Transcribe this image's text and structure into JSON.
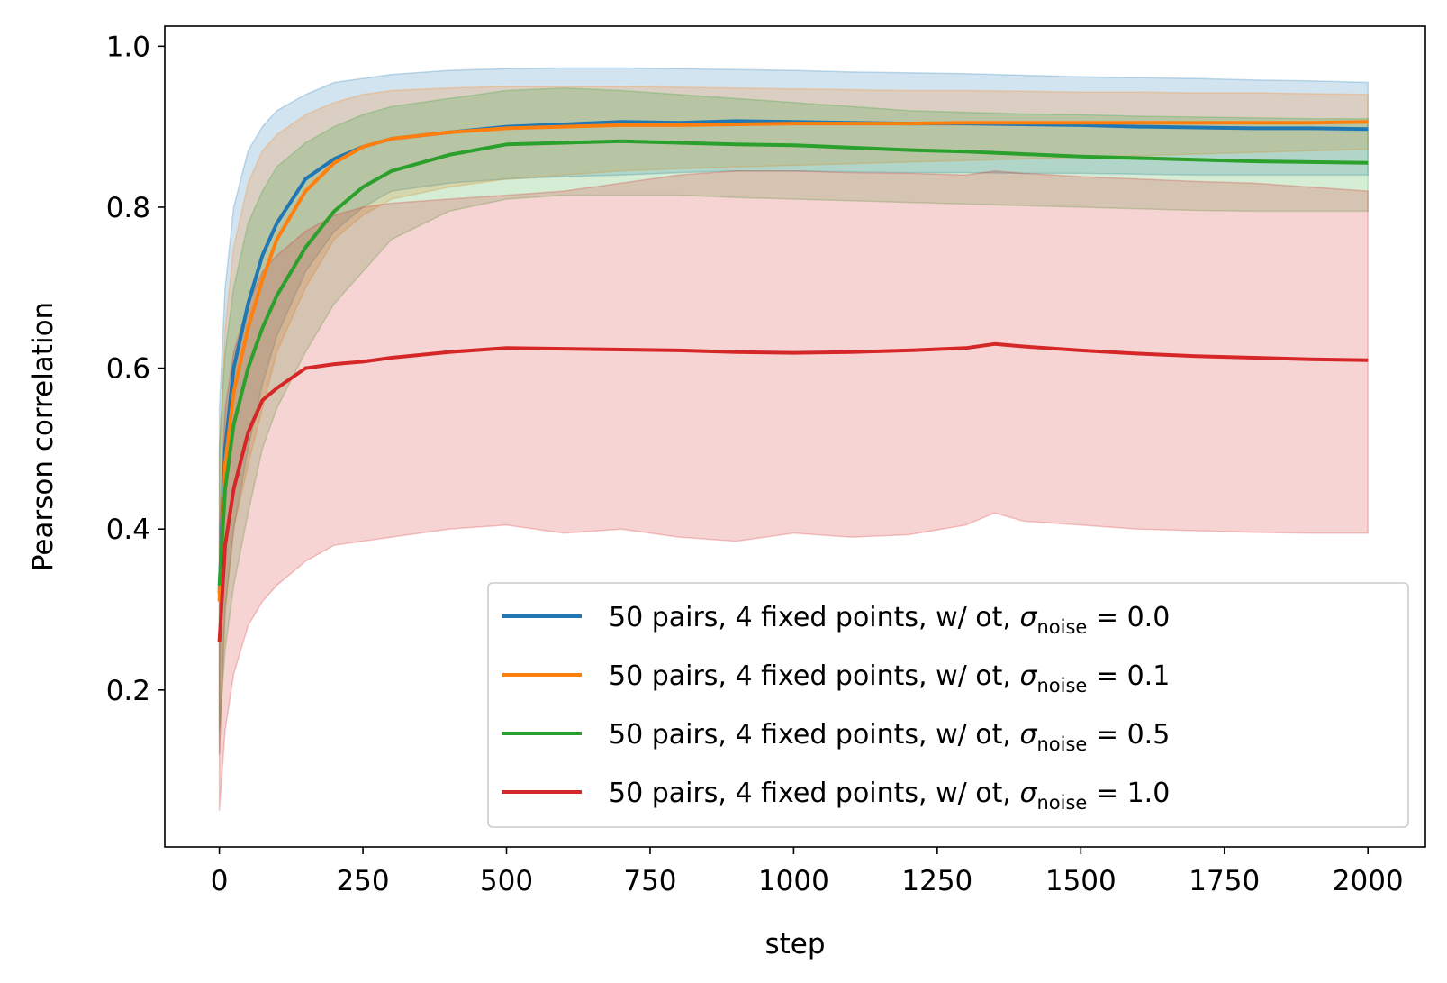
{
  "chart_data": {
    "type": "line",
    "title": "",
    "xlabel": "step",
    "ylabel": "Pearson correlation",
    "xlim": [
      -95,
      2100
    ],
    "ylim": [
      0.005,
      1.025
    ],
    "xticks": [
      0,
      250,
      500,
      750,
      1000,
      1250,
      1500,
      1750,
      2000
    ],
    "xtick_labels": [
      "0",
      "250",
      "500",
      "750",
      "1000",
      "1250",
      "1500",
      "1750",
      "2000"
    ],
    "yticks": [
      0.2,
      0.4,
      0.6,
      0.8,
      1.0
    ],
    "ytick_labels": [
      "0.2",
      "0.4",
      "0.6",
      "0.8",
      "1.0"
    ],
    "grid": false,
    "legend_position": "lower-right",
    "legend_prefix": "50 pairs, 4 fixed points, w/ ot, ",
    "legend_symbol": "σ",
    "legend_subscript": "noise",
    "series": [
      {
        "name": "50 pairs, 4 fixed points, w/ ot, σnoise = 0.0",
        "sigma_label": "= 0.0",
        "color": "#1f77b4",
        "x": [
          0,
          10,
          25,
          50,
          75,
          100,
          150,
          200,
          250,
          300,
          400,
          500,
          600,
          700,
          800,
          900,
          1000,
          1100,
          1200,
          1300,
          1400,
          1500,
          1600,
          1700,
          1800,
          1900,
          2000
        ],
        "mean": [
          0.32,
          0.5,
          0.6,
          0.68,
          0.74,
          0.78,
          0.835,
          0.86,
          0.875,
          0.885,
          0.893,
          0.9,
          0.903,
          0.906,
          0.905,
          0.907,
          0.906,
          0.905,
          0.904,
          0.904,
          0.903,
          0.902,
          0.9,
          0.899,
          0.898,
          0.898,
          0.897
        ],
        "upper": [
          0.55,
          0.7,
          0.8,
          0.87,
          0.9,
          0.92,
          0.94,
          0.955,
          0.96,
          0.965,
          0.97,
          0.972,
          0.973,
          0.973,
          0.972,
          0.971,
          0.97,
          0.968,
          0.967,
          0.966,
          0.964,
          0.962,
          0.961,
          0.96,
          0.958,
          0.957,
          0.955
        ],
        "lower": [
          0.12,
          0.3,
          0.4,
          0.5,
          0.58,
          0.64,
          0.72,
          0.77,
          0.8,
          0.82,
          0.83,
          0.835,
          0.838,
          0.84,
          0.843,
          0.845,
          0.845,
          0.844,
          0.843,
          0.843,
          0.842,
          0.842,
          0.841,
          0.84,
          0.84,
          0.84,
          0.84
        ]
      },
      {
        "name": "50 pairs, 4 fixed points, w/ ot, σnoise = 0.1",
        "sigma_label": "= 0.1",
        "color": "#ff7f0e",
        "x": [
          0,
          10,
          25,
          50,
          75,
          100,
          150,
          200,
          250,
          300,
          400,
          500,
          600,
          700,
          800,
          900,
          1000,
          1100,
          1200,
          1300,
          1400,
          1500,
          1600,
          1700,
          1800,
          1900,
          2000
        ],
        "mean": [
          0.31,
          0.48,
          0.57,
          0.65,
          0.71,
          0.76,
          0.82,
          0.855,
          0.875,
          0.885,
          0.893,
          0.898,
          0.9,
          0.902,
          0.902,
          0.903,
          0.904,
          0.904,
          0.904,
          0.905,
          0.905,
          0.905,
          0.905,
          0.905,
          0.905,
          0.905,
          0.906
        ],
        "upper": [
          0.5,
          0.65,
          0.75,
          0.83,
          0.87,
          0.89,
          0.915,
          0.93,
          0.94,
          0.945,
          0.948,
          0.95,
          0.95,
          0.95,
          0.949,
          0.948,
          0.947,
          0.946,
          0.945,
          0.945,
          0.944,
          0.943,
          0.943,
          0.942,
          0.942,
          0.941,
          0.94
        ],
        "lower": [
          0.12,
          0.3,
          0.4,
          0.48,
          0.55,
          0.62,
          0.7,
          0.76,
          0.79,
          0.81,
          0.825,
          0.835,
          0.84,
          0.845,
          0.848,
          0.85,
          0.852,
          0.854,
          0.856,
          0.858,
          0.86,
          0.862,
          0.864,
          0.866,
          0.868,
          0.87,
          0.872
        ]
      },
      {
        "name": "50 pairs, 4 fixed points, w/ ot, σnoise = 0.5",
        "sigma_label": "= 0.5",
        "color": "#2ca02c",
        "x": [
          0,
          10,
          25,
          50,
          75,
          100,
          150,
          200,
          250,
          300,
          400,
          500,
          600,
          700,
          800,
          900,
          1000,
          1100,
          1200,
          1300,
          1400,
          1500,
          1600,
          1700,
          1800,
          1900,
          2000
        ],
        "mean": [
          0.33,
          0.45,
          0.53,
          0.6,
          0.65,
          0.69,
          0.75,
          0.795,
          0.825,
          0.845,
          0.865,
          0.878,
          0.88,
          0.882,
          0.88,
          0.878,
          0.877,
          0.874,
          0.871,
          0.869,
          0.866,
          0.863,
          0.861,
          0.859,
          0.857,
          0.856,
          0.855
        ],
        "upper": [
          0.5,
          0.62,
          0.7,
          0.78,
          0.82,
          0.85,
          0.88,
          0.9,
          0.915,
          0.925,
          0.935,
          0.945,
          0.948,
          0.945,
          0.94,
          0.935,
          0.93,
          0.925,
          0.92,
          0.918,
          0.916,
          0.915,
          0.913,
          0.912,
          0.911,
          0.91,
          0.91
        ],
        "lower": [
          0.15,
          0.25,
          0.33,
          0.42,
          0.5,
          0.55,
          0.62,
          0.68,
          0.72,
          0.76,
          0.795,
          0.81,
          0.815,
          0.815,
          0.815,
          0.812,
          0.81,
          0.808,
          0.806,
          0.804,
          0.802,
          0.8,
          0.798,
          0.796,
          0.795,
          0.795,
          0.795
        ]
      },
      {
        "name": "50 pairs, 4 fixed points, w/ ot, σnoise = 1.0",
        "sigma_label": "= 1.0",
        "color": "#d62728",
        "x": [
          0,
          10,
          25,
          50,
          75,
          100,
          150,
          200,
          250,
          300,
          400,
          500,
          600,
          700,
          800,
          900,
          1000,
          1100,
          1200,
          1300,
          1350,
          1400,
          1500,
          1600,
          1700,
          1800,
          1900,
          2000
        ],
        "mean": [
          0.26,
          0.38,
          0.45,
          0.52,
          0.56,
          0.575,
          0.6,
          0.605,
          0.608,
          0.613,
          0.62,
          0.625,
          0.624,
          0.623,
          0.622,
          0.62,
          0.619,
          0.62,
          0.622,
          0.625,
          0.63,
          0.627,
          0.622,
          0.618,
          0.615,
          0.613,
          0.611,
          0.61
        ],
        "upper": [
          0.4,
          0.55,
          0.62,
          0.68,
          0.72,
          0.74,
          0.77,
          0.79,
          0.8,
          0.805,
          0.81,
          0.815,
          0.82,
          0.83,
          0.84,
          0.845,
          0.845,
          0.843,
          0.842,
          0.84,
          0.845,
          0.842,
          0.838,
          0.835,
          0.832,
          0.83,
          0.825,
          0.82
        ],
        "lower": [
          0.05,
          0.15,
          0.22,
          0.28,
          0.31,
          0.33,
          0.36,
          0.38,
          0.385,
          0.39,
          0.4,
          0.405,
          0.395,
          0.4,
          0.39,
          0.385,
          0.395,
          0.39,
          0.393,
          0.405,
          0.42,
          0.41,
          0.405,
          0.4,
          0.398,
          0.396,
          0.395,
          0.395
        ]
      }
    ]
  }
}
